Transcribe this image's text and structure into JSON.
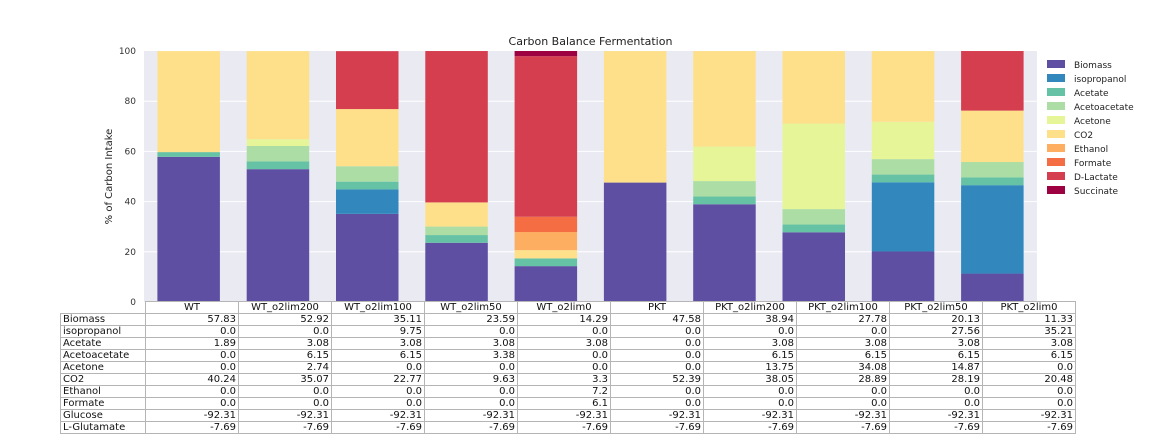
{
  "chart_data": {
    "type": "bar",
    "stacked": true,
    "title": "Carbon Balance Fermentation",
    "ylabel": "% of Carbon Intake",
    "ylim": [
      0,
      100
    ],
    "yticks": [
      0,
      20,
      40,
      60,
      80,
      100
    ],
    "grid": true,
    "legend_position": "right",
    "categories": [
      "WT",
      "WT_o2lim200",
      "WT_o2lim100",
      "WT_o2lim50",
      "WT_o2lim0",
      "PKT",
      "PKT_o2lim200",
      "PKT_o2lim100",
      "PKT_o2lim50",
      "PKT_o2lim0"
    ],
    "series": [
      {
        "name": "Biomass",
        "color": "#5e4fa2",
        "values": [
          57.83,
          52.92,
          35.11,
          23.59,
          14.29,
          47.58,
          38.94,
          27.78,
          20.13,
          11.33
        ]
      },
      {
        "name": "isopropanol",
        "color": "#3288bd",
        "values": [
          0.0,
          0.0,
          9.75,
          0.0,
          0.0,
          0.0,
          0.0,
          0.0,
          27.56,
          35.21
        ]
      },
      {
        "name": "Acetate",
        "color": "#66c2a5",
        "values": [
          1.89,
          3.08,
          3.08,
          3.08,
          3.08,
          0.0,
          3.08,
          3.08,
          3.08,
          3.08
        ]
      },
      {
        "name": "Acetoacetate",
        "color": "#abdda4",
        "values": [
          0.0,
          6.15,
          6.15,
          3.38,
          0.0,
          0.0,
          6.15,
          6.15,
          6.15,
          6.15
        ]
      },
      {
        "name": "Acetone",
        "color": "#e6f598",
        "values": [
          0.0,
          2.74,
          0.0,
          0.0,
          0.0,
          0.0,
          13.75,
          34.08,
          14.87,
          0.0
        ]
      },
      {
        "name": "CO2",
        "color": "#fee08b",
        "values": [
          40.24,
          35.07,
          22.77,
          9.63,
          3.3,
          52.39,
          38.05,
          28.89,
          28.19,
          20.48
        ]
      },
      {
        "name": "Ethanol",
        "color": "#fdae61",
        "values": [
          0.0,
          0.0,
          0.0,
          0.0,
          7.2,
          0.0,
          0.0,
          0.0,
          0.0,
          0.0
        ]
      },
      {
        "name": "Formate",
        "color": "#f46d43",
        "values": [
          0.0,
          0.0,
          0.0,
          0.0,
          6.1,
          0.0,
          0.0,
          0.0,
          0.0,
          0.0
        ]
      },
      {
        "name": "D-Lactate",
        "color": "#d53e4f",
        "values": [
          0.0,
          0.0,
          23.08,
          60.31,
          63.96,
          0.0,
          0.0,
          0.0,
          0.0,
          23.74
        ]
      },
      {
        "name": "Succinate",
        "color": "#9e0142",
        "values": [
          0.0,
          0.0,
          0.0,
          0.0,
          2.31,
          0.0,
          0.0,
          0.0,
          0.0,
          0.0
        ]
      }
    ],
    "table_rows": [
      {
        "label": "Biomass",
        "values": [
          "57.83",
          "52.92",
          "35.11",
          "23.59",
          "14.29",
          "47.58",
          "38.94",
          "27.78",
          "20.13",
          "11.33"
        ]
      },
      {
        "label": "isopropanol",
        "values": [
          "0.0",
          "0.0",
          "9.75",
          "0.0",
          "0.0",
          "0.0",
          "0.0",
          "0.0",
          "27.56",
          "35.21"
        ]
      },
      {
        "label": "Acetate",
        "values": [
          "1.89",
          "3.08",
          "3.08",
          "3.08",
          "3.08",
          "0.0",
          "3.08",
          "3.08",
          "3.08",
          "3.08"
        ]
      },
      {
        "label": "Acetoacetate",
        "values": [
          "0.0",
          "6.15",
          "6.15",
          "3.38",
          "0.0",
          "0.0",
          "6.15",
          "6.15",
          "6.15",
          "6.15"
        ]
      },
      {
        "label": "Acetone",
        "values": [
          "0.0",
          "2.74",
          "0.0",
          "0.0",
          "0.0",
          "0.0",
          "13.75",
          "34.08",
          "14.87",
          "0.0"
        ]
      },
      {
        "label": "CO2",
        "values": [
          "40.24",
          "35.07",
          "22.77",
          "9.63",
          "3.3",
          "52.39",
          "38.05",
          "28.89",
          "28.19",
          "20.48"
        ]
      },
      {
        "label": "Ethanol",
        "values": [
          "0.0",
          "0.0",
          "0.0",
          "0.0",
          "7.2",
          "0.0",
          "0.0",
          "0.0",
          "0.0",
          "0.0"
        ]
      },
      {
        "label": "Formate",
        "values": [
          "0.0",
          "0.0",
          "0.0",
          "0.0",
          "6.1",
          "0.0",
          "0.0",
          "0.0",
          "0.0",
          "0.0"
        ]
      },
      {
        "label": "Glucose",
        "values": [
          "-92.31",
          "-92.31",
          "-92.31",
          "-92.31",
          "-92.31",
          "-92.31",
          "-92.31",
          "-92.31",
          "-92.31",
          "-92.31"
        ]
      },
      {
        "label": "L-Glutamate",
        "values": [
          "-7.69",
          "-7.69",
          "-7.69",
          "-7.69",
          "-7.69",
          "-7.69",
          "-7.69",
          "-7.69",
          "-7.69",
          "-7.69"
        ]
      }
    ]
  }
}
